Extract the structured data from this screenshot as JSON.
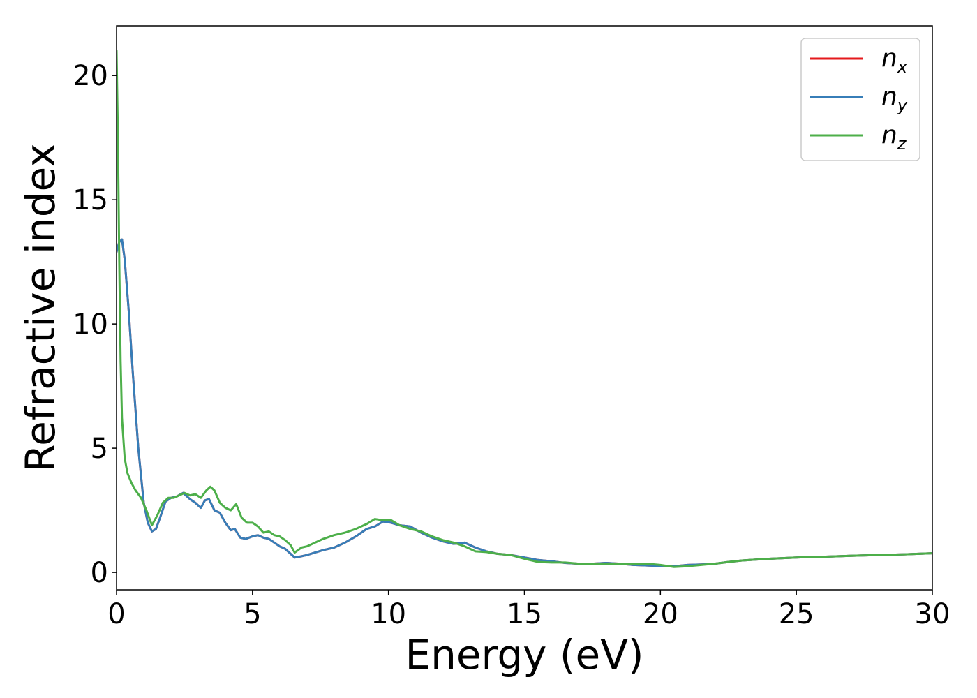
{
  "chart_data": {
    "type": "line",
    "title": "",
    "xlabel": "Energy (eV)",
    "ylabel": "Refractive index",
    "xlim": [
      0,
      30
    ],
    "ylim": [
      -0.7,
      22
    ],
    "xticks": [
      0,
      5,
      10,
      15,
      20,
      25,
      30
    ],
    "yticks": [
      0,
      5,
      10,
      15,
      20
    ],
    "grid": false,
    "legend_position": "top-right",
    "series": [
      {
        "name": "n",
        "subscript": "x",
        "color": "#e41a1c",
        "x": [
          0,
          0.1,
          0.2,
          0.3,
          0.45,
          0.6,
          0.8,
          1.0,
          1.15,
          1.3,
          1.45,
          1.6,
          1.8,
          2.0,
          2.2,
          2.45,
          2.7,
          2.9,
          3.1,
          3.25,
          3.4,
          3.6,
          3.8,
          4.0,
          4.2,
          4.35,
          4.55,
          4.75,
          5.0,
          5.2,
          5.4,
          5.6,
          5.8,
          6.0,
          6.2,
          6.4,
          6.55,
          6.8,
          7.0,
          7.3,
          7.6,
          8.0,
          8.4,
          8.8,
          9.2,
          9.5,
          9.8,
          10.1,
          10.4,
          10.8,
          11.2,
          11.6,
          12.0,
          12.4,
          12.8,
          13.2,
          13.6,
          14.0,
          14.5,
          15.0,
          15.5,
          16.0,
          16.5,
          17.0,
          17.5,
          18.0,
          18.5,
          19.0,
          19.5,
          20.0,
          20.5,
          21.0,
          21.5,
          22.0,
          22.5,
          23.0,
          24.0,
          25.0,
          26.0,
          27.0,
          28.0,
          29.0,
          30.0
        ],
        "y": [
          12.9,
          13.3,
          13.4,
          12.6,
          10.5,
          8.0,
          5.0,
          2.8,
          2.0,
          1.65,
          1.75,
          2.2,
          2.85,
          3.0,
          3.05,
          3.2,
          2.95,
          2.8,
          2.6,
          2.9,
          2.95,
          2.5,
          2.4,
          2.0,
          1.7,
          1.75,
          1.4,
          1.35,
          1.45,
          1.5,
          1.4,
          1.35,
          1.2,
          1.05,
          0.95,
          0.75,
          0.6,
          0.65,
          0.7,
          0.8,
          0.9,
          1.0,
          1.2,
          1.45,
          1.75,
          1.85,
          2.05,
          2.0,
          1.9,
          1.85,
          1.6,
          1.4,
          1.25,
          1.15,
          1.2,
          1.0,
          0.85,
          0.75,
          0.7,
          0.6,
          0.5,
          0.45,
          0.38,
          0.35,
          0.35,
          0.38,
          0.35,
          0.3,
          0.28,
          0.26,
          0.25,
          0.3,
          0.32,
          0.35,
          0.42,
          0.48,
          0.55,
          0.6,
          0.63,
          0.67,
          0.7,
          0.73,
          0.77
        ]
      },
      {
        "name": "n",
        "subscript": "y",
        "color": "#377eb8",
        "x": [
          0,
          0.1,
          0.2,
          0.3,
          0.45,
          0.6,
          0.8,
          1.0,
          1.15,
          1.3,
          1.45,
          1.6,
          1.8,
          2.0,
          2.2,
          2.45,
          2.7,
          2.9,
          3.1,
          3.25,
          3.4,
          3.6,
          3.8,
          4.0,
          4.2,
          4.35,
          4.55,
          4.75,
          5.0,
          5.2,
          5.4,
          5.6,
          5.8,
          6.0,
          6.2,
          6.4,
          6.55,
          6.8,
          7.0,
          7.3,
          7.6,
          8.0,
          8.4,
          8.8,
          9.2,
          9.5,
          9.8,
          10.1,
          10.4,
          10.8,
          11.2,
          11.6,
          12.0,
          12.4,
          12.8,
          13.2,
          13.6,
          14.0,
          14.5,
          15.0,
          15.5,
          16.0,
          16.5,
          17.0,
          17.5,
          18.0,
          18.5,
          19.0,
          19.5,
          20.0,
          20.5,
          21.0,
          21.5,
          22.0,
          22.5,
          23.0,
          24.0,
          25.0,
          26.0,
          27.0,
          28.0,
          29.0,
          30.0
        ],
        "y": [
          12.9,
          13.3,
          13.4,
          12.6,
          10.5,
          8.0,
          5.0,
          2.8,
          2.0,
          1.65,
          1.75,
          2.2,
          2.85,
          3.0,
          3.05,
          3.2,
          2.95,
          2.8,
          2.6,
          2.9,
          2.95,
          2.5,
          2.4,
          2.0,
          1.7,
          1.75,
          1.4,
          1.35,
          1.45,
          1.5,
          1.4,
          1.35,
          1.2,
          1.05,
          0.95,
          0.75,
          0.6,
          0.65,
          0.7,
          0.8,
          0.9,
          1.0,
          1.2,
          1.45,
          1.75,
          1.85,
          2.05,
          2.0,
          1.9,
          1.85,
          1.6,
          1.4,
          1.25,
          1.15,
          1.2,
          1.0,
          0.85,
          0.75,
          0.7,
          0.6,
          0.5,
          0.45,
          0.38,
          0.35,
          0.35,
          0.38,
          0.35,
          0.3,
          0.28,
          0.26,
          0.25,
          0.3,
          0.32,
          0.35,
          0.42,
          0.48,
          0.55,
          0.6,
          0.63,
          0.67,
          0.7,
          0.73,
          0.77
        ]
      },
      {
        "name": "n",
        "subscript": "z",
        "color": "#4daf4a",
        "x": [
          0,
          0.05,
          0.1,
          0.15,
          0.2,
          0.3,
          0.4,
          0.55,
          0.7,
          0.9,
          1.1,
          1.3,
          1.5,
          1.7,
          1.9,
          2.1,
          2.3,
          2.5,
          2.7,
          2.9,
          3.1,
          3.3,
          3.45,
          3.6,
          3.8,
          4.0,
          4.2,
          4.4,
          4.6,
          4.8,
          5.0,
          5.2,
          5.4,
          5.6,
          5.8,
          6.0,
          6.2,
          6.4,
          6.55,
          6.8,
          7.0,
          7.3,
          7.6,
          8.0,
          8.4,
          8.8,
          9.2,
          9.5,
          9.8,
          10.1,
          10.4,
          10.8,
          11.2,
          11.6,
          12.0,
          12.4,
          12.8,
          13.2,
          13.6,
          14.0,
          14.5,
          15.0,
          15.5,
          16.0,
          16.5,
          17.0,
          17.5,
          18.0,
          18.5,
          19.0,
          19.5,
          20.0,
          20.5,
          21.0,
          21.5,
          22.0,
          22.5,
          23.0,
          24.0,
          25.0,
          26.0,
          27.0,
          28.0,
          29.0,
          30.0
        ],
        "y": [
          21.0,
          17.5,
          12.5,
          8.5,
          6.2,
          4.6,
          4.0,
          3.6,
          3.3,
          3.0,
          2.5,
          1.9,
          2.3,
          2.8,
          3.0,
          3.0,
          3.1,
          3.2,
          3.1,
          3.15,
          3.0,
          3.3,
          3.45,
          3.3,
          2.8,
          2.6,
          2.5,
          2.75,
          2.2,
          2.0,
          2.0,
          1.85,
          1.6,
          1.65,
          1.5,
          1.45,
          1.3,
          1.1,
          0.8,
          1.0,
          1.05,
          1.2,
          1.35,
          1.5,
          1.6,
          1.75,
          1.95,
          2.15,
          2.1,
          2.1,
          1.9,
          1.75,
          1.65,
          1.45,
          1.3,
          1.2,
          1.05,
          0.85,
          0.82,
          0.75,
          0.7,
          0.55,
          0.42,
          0.4,
          0.4,
          0.35,
          0.35,
          0.35,
          0.33,
          0.33,
          0.35,
          0.3,
          0.22,
          0.25,
          0.3,
          0.35,
          0.42,
          0.48,
          0.55,
          0.6,
          0.63,
          0.67,
          0.7,
          0.73,
          0.77
        ]
      }
    ]
  }
}
